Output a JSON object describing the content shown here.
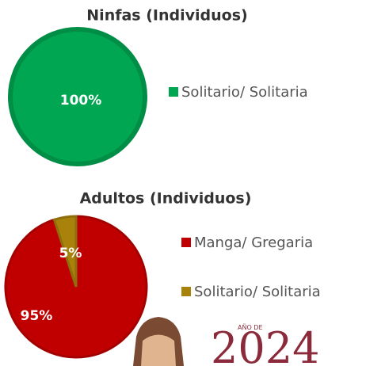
{
  "chart_data": [
    {
      "type": "pie",
      "title": "Ninfas (Individuos)",
      "categories": [
        "Solitario/ Solitaria"
      ],
      "values": [
        100
      ],
      "value_labels": [
        "100%"
      ],
      "colors": [
        "#00a651"
      ],
      "legend": "right"
    },
    {
      "type": "pie",
      "title": "Adultos (Individuos)",
      "categories": [
        "Manga/ Gregaria",
        "Solitario/ Solitaria"
      ],
      "values": [
        95,
        5
      ],
      "value_labels": [
        "95%",
        "5%"
      ],
      "colors": [
        "#c00000",
        "#a8820a"
      ],
      "legend": "right"
    }
  ],
  "footer_logo": {
    "caption": "AÑO DE",
    "year": "2024"
  }
}
